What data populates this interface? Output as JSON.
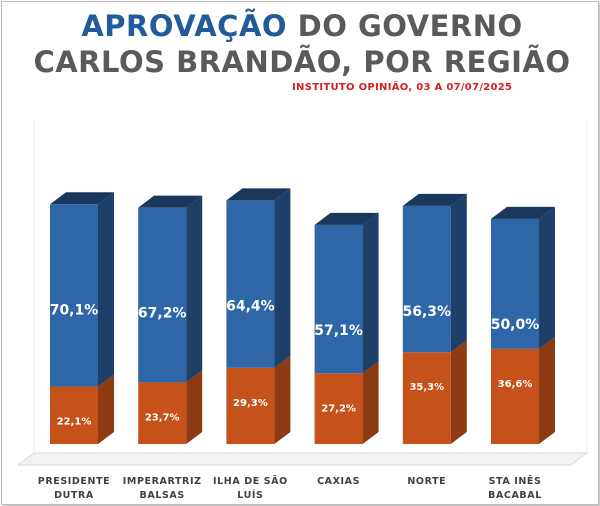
{
  "title": {
    "part1_highlight": "APROVAÇÃO",
    "part1_rest": " DO GOVERNO",
    "line2": "CARLOS BRANDÃO, POR REGIÃO"
  },
  "source": "INSTITUTO OPINIÃO, 03 A 07/07/2025",
  "colors": {
    "approve": "#2e66a8",
    "disapprove": "#c5521a",
    "title_highlight": "#1f5c99",
    "source": "#d61f1f"
  },
  "chart_data": {
    "type": "bar",
    "stacked": true,
    "categories": [
      [
        "PRESIDENTE",
        "DUTRA"
      ],
      [
        "IMPERARTRIZ",
        "BALSAS"
      ],
      [
        "ILHA DE SÃO",
        "LUÍS"
      ],
      [
        "CAXIAS"
      ],
      [
        "NORTE"
      ],
      [
        "STA INÊS",
        "BACABAL"
      ]
    ],
    "series": [
      {
        "values": [
          22.1,
          23.7,
          29.3,
          27.2,
          35.3,
          36.6
        ],
        "labels": [
          "22,1%",
          "23,7%",
          "29,3%",
          "27,2%",
          "35,3%",
          "36,6%"
        ]
      },
      {
        "values": [
          70.1,
          67.2,
          64.4,
          57.1,
          56.3,
          50.0
        ],
        "labels": [
          "70,1%",
          "67,2%",
          "64,4%",
          "57,1%",
          "56,3%",
          "50,0%"
        ]
      }
    ],
    "ylim": [
      0,
      100
    ]
  }
}
